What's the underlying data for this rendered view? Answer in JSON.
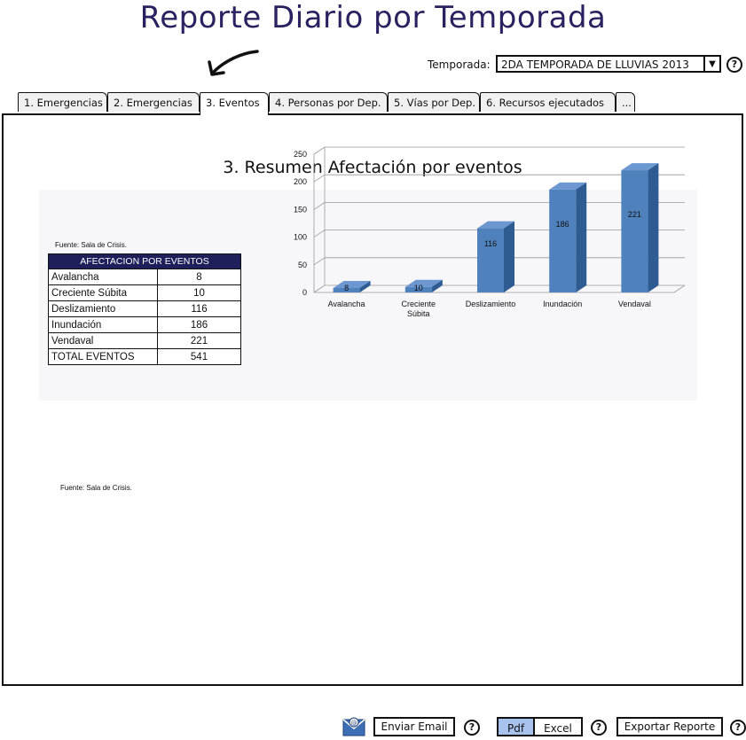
{
  "header": {
    "title": "Reporte Diario por Temporada"
  },
  "season": {
    "label": "Temporada:",
    "value": "2DA TEMPORADA DE LLUVIAS 2013"
  },
  "tabs": [
    {
      "label": "1. Emergencias"
    },
    {
      "label": "2. Emergencias"
    },
    {
      "label": "3. Eventos"
    },
    {
      "label": "4. Personas por Dep."
    },
    {
      "label": "5. Vías por Dep."
    },
    {
      "label": "6. Recursos ejecutados"
    },
    {
      "label": "..."
    }
  ],
  "panel": {
    "title": "3. Resumen Afectación por eventos"
  },
  "table": {
    "source_top": "Fuente: Sala de Crisis.",
    "header": "AFECTACION POR EVENTOS",
    "rows": [
      {
        "name": "Avalancha",
        "value": "8"
      },
      {
        "name": "Creciente Súbita",
        "value": "10"
      },
      {
        "name": "Deslizamiento",
        "value": "116"
      },
      {
        "name": "Inundación",
        "value": "186"
      },
      {
        "name": "Vendaval",
        "value": "221"
      },
      {
        "name": "TOTAL EVENTOS",
        "value": "541"
      }
    ],
    "source_bottom": "Fuente: Sala de Crisis."
  },
  "chart_data": {
    "type": "bar",
    "categories": [
      "Avalancha",
      "Creciente Súbita",
      "Deslizamiento",
      "Inundación",
      "Vendaval"
    ],
    "values": [
      8,
      10,
      116,
      186,
      221
    ],
    "ylim": [
      0,
      250
    ],
    "yticks": [
      0,
      50,
      100,
      150,
      200,
      250
    ],
    "title": "",
    "xlabel": "",
    "ylabel": "",
    "grid": true,
    "bar_color": "#4f81bd"
  },
  "footer": {
    "email_label": "Enviar Email",
    "pdf_label": "Pdf",
    "excel_label": "Excel",
    "export_label": "Exportar Reporte",
    "help_glyph": "?"
  }
}
